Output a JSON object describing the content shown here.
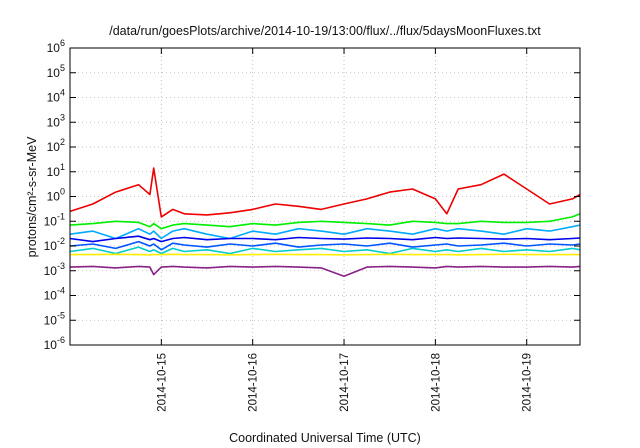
{
  "chart_data": {
    "type": "line",
    "title": "/data/run/goesPlots/archive/2014-10-19/13:00/flux/../flux/5daysMoonFluxes.txt",
    "xlabel": "Coordinated Universal Time (UTC)",
    "ylabel": "protons/cm²-s-sr-MeV",
    "yscale": "log",
    "ylim": [
      1e-06,
      1000000.0
    ],
    "xlim": [
      "2014-10-14 00:00",
      "2014-10-19 14:00"
    ],
    "grid": true,
    "legend": "none",
    "y_ticks": [
      {
        "base": "10",
        "exp": "-6",
        "value": 1e-06
      },
      {
        "base": "10",
        "exp": "-5",
        "value": 1e-05
      },
      {
        "base": "10",
        "exp": "-4",
        "value": 0.0001
      },
      {
        "base": "10",
        "exp": "-3",
        "value": 0.001
      },
      {
        "base": "10",
        "exp": "-2",
        "value": 0.01
      },
      {
        "base": "10",
        "exp": "-1",
        "value": 0.1
      },
      {
        "base": "10",
        "exp": "0",
        "value": 1
      },
      {
        "base": "10",
        "exp": "1",
        "value": 10
      },
      {
        "base": "10",
        "exp": "2",
        "value": 100
      },
      {
        "base": "10",
        "exp": "3",
        "value": 1000
      },
      {
        "base": "10",
        "exp": "4",
        "value": 10000
      },
      {
        "base": "10",
        "exp": "5",
        "value": 100000
      },
      {
        "base": "10",
        "exp": "6",
        "value": 1000000
      }
    ],
    "x_ticks": [
      {
        "label": "2014-10-15",
        "value": "2014-10-15 00:00"
      },
      {
        "label": "2014-10-16",
        "value": "2014-10-16 00:00"
      },
      {
        "label": "2014-10-17",
        "value": "2014-10-17 00:00"
      },
      {
        "label": "2014-10-18",
        "value": "2014-10-18 00:00"
      },
      {
        "label": "2014-10-19",
        "value": "2014-10-19 00:00"
      }
    ],
    "x": [
      "2014-10-14 00:00",
      "2014-10-14 06:00",
      "2014-10-14 12:00",
      "2014-10-14 18:00",
      "2014-10-14 21:00",
      "2014-10-14 22:00",
      "2014-10-15 00:00",
      "2014-10-15 03:00",
      "2014-10-15 06:00",
      "2014-10-15 12:00",
      "2014-10-15 18:00",
      "2014-10-16 00:00",
      "2014-10-16 06:00",
      "2014-10-16 12:00",
      "2014-10-16 18:00",
      "2014-10-17 00:00",
      "2014-10-17 06:00",
      "2014-10-17 12:00",
      "2014-10-17 18:00",
      "2014-10-18 00:00",
      "2014-10-18 03:00",
      "2014-10-18 06:00",
      "2014-10-18 12:00",
      "2014-10-18 18:00",
      "2014-10-19 00:00",
      "2014-10-19 06:00",
      "2014-10-19 12:00",
      "2014-10-19 14:00"
    ],
    "series": [
      {
        "color": "#ee0000",
        "values": [
          0.25,
          0.5,
          1.5,
          3,
          1.2,
          14,
          0.15,
          0.3,
          0.2,
          0.18,
          0.22,
          0.3,
          0.5,
          0.4,
          0.3,
          0.5,
          0.8,
          1.5,
          2,
          0.8,
          0.2,
          2,
          3,
          8,
          2,
          0.5,
          0.8,
          1.2
        ]
      },
      {
        "color": "#00ee00",
        "values": [
          0.07,
          0.08,
          0.1,
          0.09,
          0.06,
          0.08,
          0.05,
          0.07,
          0.08,
          0.07,
          0.06,
          0.08,
          0.07,
          0.09,
          0.1,
          0.09,
          0.08,
          0.07,
          0.1,
          0.09,
          0.08,
          0.08,
          0.1,
          0.09,
          0.09,
          0.1,
          0.15,
          0.2
        ]
      },
      {
        "color": "#00aaff",
        "values": [
          0.03,
          0.04,
          0.02,
          0.05,
          0.03,
          0.04,
          0.02,
          0.04,
          0.05,
          0.03,
          0.02,
          0.04,
          0.03,
          0.05,
          0.04,
          0.03,
          0.05,
          0.04,
          0.03,
          0.05,
          0.04,
          0.05,
          0.04,
          0.03,
          0.05,
          0.04,
          0.06,
          0.07
        ]
      },
      {
        "color": "#0000ee",
        "values": [
          0.02,
          0.015,
          0.02,
          0.025,
          0.018,
          0.02,
          0.015,
          0.02,
          0.022,
          0.018,
          0.02,
          0.02,
          0.018,
          0.022,
          0.02,
          0.019,
          0.021,
          0.02,
          0.018,
          0.022,
          0.02,
          0.021,
          0.02,
          0.019,
          0.02,
          0.018,
          0.02,
          0.021
        ]
      },
      {
        "color": "#0055ff",
        "values": [
          0.01,
          0.012,
          0.008,
          0.015,
          0.01,
          0.012,
          0.007,
          0.013,
          0.011,
          0.009,
          0.012,
          0.01,
          0.013,
          0.009,
          0.011,
          0.012,
          0.01,
          0.013,
          0.009,
          0.011,
          0.012,
          0.01,
          0.011,
          0.013,
          0.01,
          0.012,
          0.011,
          0.012
        ]
      },
      {
        "color": "#00cccc",
        "values": [
          0.006,
          0.008,
          0.005,
          0.009,
          0.006,
          0.007,
          0.005,
          0.008,
          0.006,
          0.007,
          0.005,
          0.008,
          0.006,
          0.007,
          0.008,
          0.006,
          0.007,
          0.005,
          0.008,
          0.006,
          0.007,
          0.006,
          0.008,
          0.006,
          0.007,
          0.006,
          0.008,
          0.007
        ]
      },
      {
        "color": "#ffee00",
        "values": [
          0.0045,
          0.0045,
          0.0046,
          0.0045,
          0.0044,
          0.0045,
          0.0045,
          0.0046,
          0.0045,
          0.0045,
          0.0044,
          0.0045,
          0.0046,
          0.0045,
          0.0045,
          0.0044,
          0.0045,
          0.0046,
          0.0045,
          0.0045,
          0.0045,
          0.0044,
          0.0045,
          0.0046,
          0.0045,
          0.0045,
          0.0045,
          0.0045
        ]
      },
      {
        "color": "#882288",
        "values": [
          0.0014,
          0.0015,
          0.0013,
          0.0015,
          0.0014,
          0.0007,
          0.0014,
          0.0015,
          0.0014,
          0.0013,
          0.0015,
          0.0014,
          0.0015,
          0.0014,
          0.0013,
          0.0006,
          0.0014,
          0.0015,
          0.0014,
          0.0013,
          0.0015,
          0.0014,
          0.0015,
          0.0014,
          0.0014,
          0.0015,
          0.0014,
          0.0015
        ]
      }
    ]
  }
}
